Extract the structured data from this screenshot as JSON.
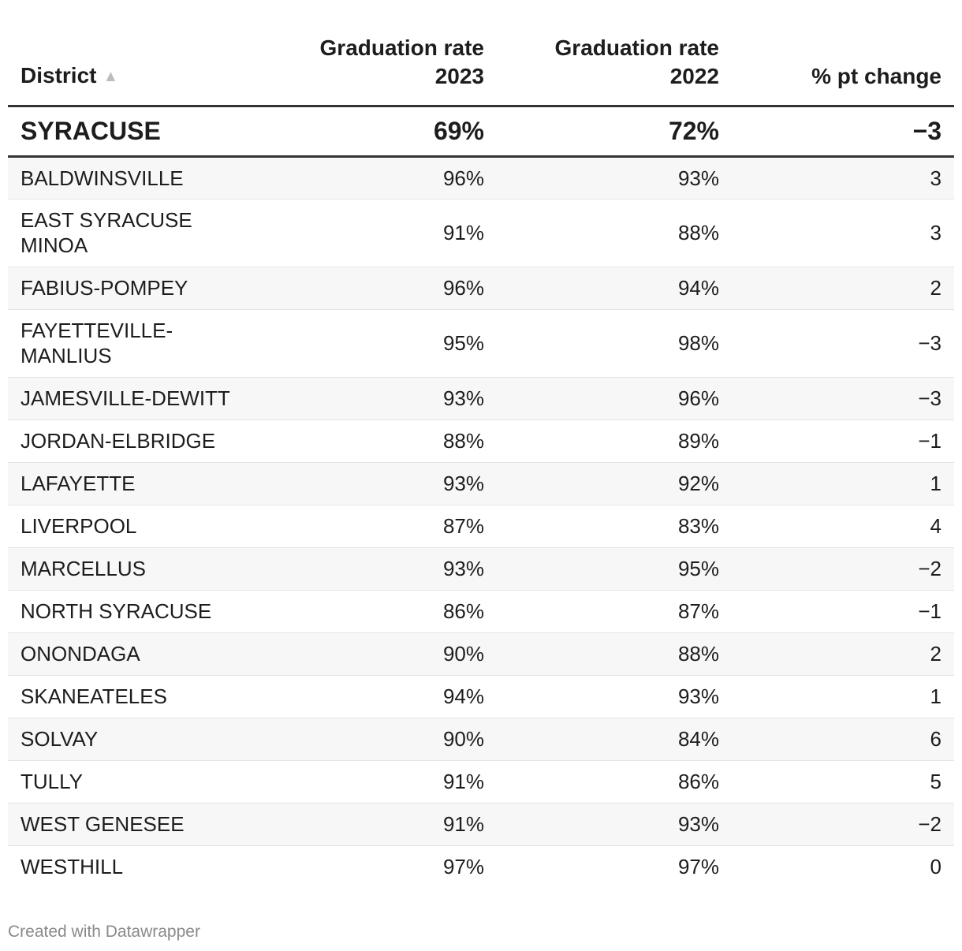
{
  "chart_data": {
    "type": "table",
    "columns": [
      {
        "lines": [
          "District"
        ],
        "sort": "ascending",
        "align": "left"
      },
      {
        "lines": [
          "Graduation rate",
          "2023"
        ],
        "align": "right"
      },
      {
        "lines": [
          "Graduation rate",
          "2022"
        ],
        "align": "right"
      },
      {
        "lines": [
          "% pt change"
        ],
        "align": "right"
      }
    ],
    "highlight_row": {
      "district": "SYRACUSE",
      "rate_2023": "69%",
      "rate_2022": "72%",
      "change": "−3"
    },
    "rows": [
      {
        "district": "BALDWINSVILLE",
        "rate_2023": "96%",
        "rate_2022": "93%",
        "change": "3"
      },
      {
        "district": "EAST SYRACUSE MINOA",
        "rate_2023": "91%",
        "rate_2022": "88%",
        "change": "3"
      },
      {
        "district": "FABIUS-POMPEY",
        "rate_2023": "96%",
        "rate_2022": "94%",
        "change": "2"
      },
      {
        "district": "FAYETTEVILLE-MANLIUS",
        "rate_2023": "95%",
        "rate_2022": "98%",
        "change": "−3"
      },
      {
        "district": "JAMESVILLE-DEWITT",
        "rate_2023": "93%",
        "rate_2022": "96%",
        "change": "−3"
      },
      {
        "district": "JORDAN-ELBRIDGE",
        "rate_2023": "88%",
        "rate_2022": "89%",
        "change": "−1"
      },
      {
        "district": "LAFAYETTE",
        "rate_2023": "93%",
        "rate_2022": "92%",
        "change": "1"
      },
      {
        "district": "LIVERPOOL",
        "rate_2023": "87%",
        "rate_2022": "83%",
        "change": "4"
      },
      {
        "district": "MARCELLUS",
        "rate_2023": "93%",
        "rate_2022": "95%",
        "change": "−2"
      },
      {
        "district": "NORTH SYRACUSE",
        "rate_2023": "86%",
        "rate_2022": "87%",
        "change": "−1"
      },
      {
        "district": "ONONDAGA",
        "rate_2023": "90%",
        "rate_2022": "88%",
        "change": "2"
      },
      {
        "district": "SKANEATELES",
        "rate_2023": "94%",
        "rate_2022": "93%",
        "change": "1"
      },
      {
        "district": "SOLVAY",
        "rate_2023": "90%",
        "rate_2022": "84%",
        "change": "6"
      },
      {
        "district": "TULLY",
        "rate_2023": "91%",
        "rate_2022": "86%",
        "change": "5"
      },
      {
        "district": "WEST GENESEE",
        "rate_2023": "91%",
        "rate_2022": "93%",
        "change": "−2"
      },
      {
        "district": "WESTHILL",
        "rate_2023": "97%",
        "rate_2022": "97%",
        "change": "0"
      }
    ]
  },
  "icons": {
    "sort_indicator": "sort-ascending-icon"
  },
  "colors": {
    "text": "#1d1d1d",
    "rule": "#333333",
    "stripe": "#f7f7f7",
    "sort_arrow": "#bdbdbd",
    "footer": "#8a8a8a"
  },
  "footer": {
    "credit": "Created with Datawrapper"
  }
}
